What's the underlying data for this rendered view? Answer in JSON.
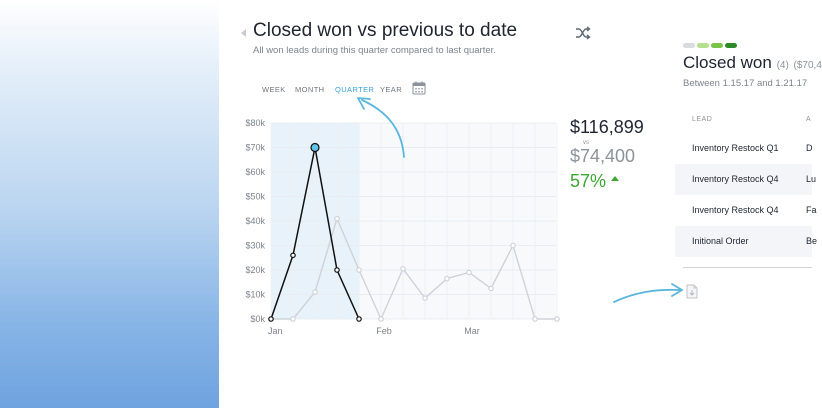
{
  "header": {
    "title": "Closed won vs previous to date",
    "subtitle": "All won leads during this quarter compared to last quarter."
  },
  "tabs": [
    {
      "label": "WEEK",
      "active": false
    },
    {
      "label": "MONTH",
      "active": false
    },
    {
      "label": "QUARTER",
      "active": true
    },
    {
      "label": "YEAR",
      "active": false
    }
  ],
  "summary": {
    "current": "$116,899",
    "vs": "vs",
    "previous": "$74,400",
    "change": "57%"
  },
  "closed_won": {
    "title": "Closed won",
    "count": "(4)",
    "amount": "($70,4",
    "range": "Between 1.15.17 and 1.21.17"
  },
  "leads_table": {
    "headers": [
      "LEAD",
      "A"
    ],
    "rows": [
      {
        "lead": "Inventory Restock Q1",
        "second": "D"
      },
      {
        "lead": "Inventory Restock Q4",
        "second": "Lu"
      },
      {
        "lead": "Inventory Restock Q4",
        "second": "Fa"
      },
      {
        "lead": "Initional Order",
        "second": "Be"
      }
    ]
  },
  "colors": {
    "accent": "#3aa0d8",
    "positive": "#3ca832",
    "current_series": "#111111",
    "previous_series": "#cfd3d8",
    "highlight_band": "#e7f2fa",
    "pills": [
      "#d9dcdf",
      "#b4e08f",
      "#7ac446",
      "#2e8b2a"
    ]
  },
  "icons": {
    "back": "caret-left-icon",
    "shuffle": "shuffle-icon",
    "calendar": "calendar-icon",
    "document": "document-icon"
  },
  "chart_data": {
    "type": "line",
    "x_tick_labels": [
      "Jan",
      "Feb",
      "Mar"
    ],
    "y_tick_labels": [
      "$0k",
      "$10k",
      "$20k",
      "$30k",
      "$40k",
      "$50k",
      "$60k",
      "$70k",
      "$80k"
    ],
    "ylim": [
      0,
      80000
    ],
    "series": [
      {
        "role": "current",
        "values": [
          0,
          26000,
          70000,
          20000,
          0
        ]
      },
      {
        "role": "previous",
        "values": [
          0,
          0,
          11000,
          41000,
          20000,
          0,
          20500,
          8500,
          16500,
          19000,
          12500,
          30000,
          0,
          0
        ]
      }
    ],
    "highlighted_point_index": 2,
    "grid": true
  }
}
